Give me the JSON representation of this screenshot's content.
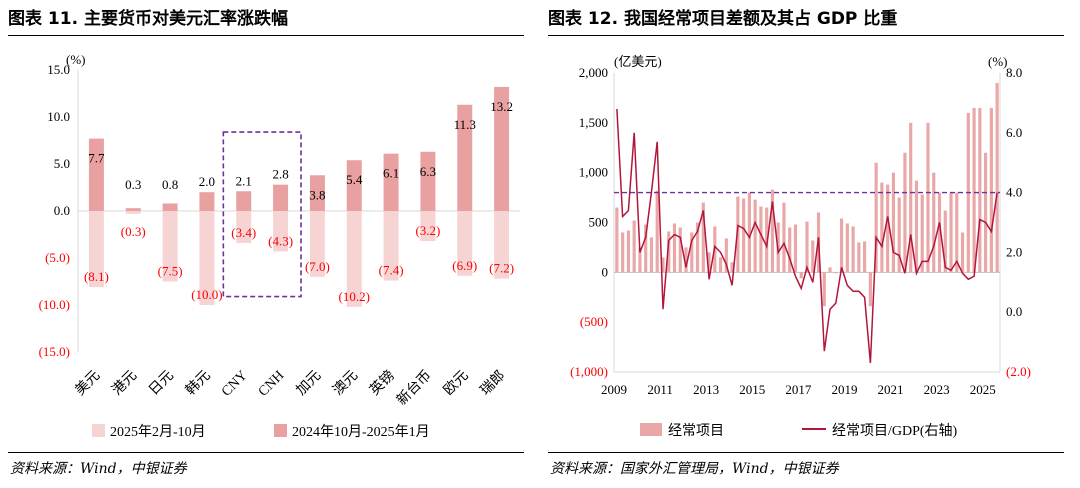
{
  "left": {
    "title": "图表 11. 主要货币对美元汇率涨跌幅",
    "source": "资料来源：Wind，中银证券",
    "unit": "(%)",
    "chart_data": {
      "type": "bar",
      "categories": [
        "美元",
        "港元",
        "日元",
        "韩元",
        "CNY",
        "CNH",
        "加元",
        "澳元",
        "英镑",
        "新台币",
        "欧元",
        "瑞郎"
      ],
      "series": [
        {
          "name": "2025年2月-10月",
          "values": [
            -8.1,
            -0.3,
            -7.5,
            -10.0,
            -3.4,
            -4.3,
            -7.0,
            -10.2,
            -7.4,
            -3.2,
            -6.9,
            -7.2
          ],
          "color": "#f7d4d4"
        },
        {
          "name": "2024年10月-2025年1月",
          "values": [
            7.7,
            0.3,
            0.8,
            2.0,
            2.1,
            2.8,
            3.8,
            5.4,
            6.1,
            6.3,
            11.3,
            13.2
          ],
          "color": "#e8a0a0"
        }
      ],
      "bar_labels": {
        "positive": [
          "7.7",
          "0.3",
          "0.8",
          "2.0",
          "2.1",
          "2.8",
          "3.8",
          "5.4",
          "6.1",
          "6.3",
          "11.3",
          "13.2"
        ],
        "negative": [
          "(8.1)",
          "(0.3)",
          "(7.5)",
          "(10.0)",
          "(3.4)",
          "(4.3)",
          "(7.0)",
          "(10.2)",
          "(7.4)",
          "(3.2)",
          "(6.9)",
          "(7.2)"
        ]
      },
      "ylim": [
        -15,
        15
      ],
      "yticks": [
        15,
        10,
        5,
        0,
        -5,
        -10,
        -15
      ],
      "ytick_labels": [
        "15.0",
        "10.0",
        "5.0",
        "0.0",
        "(5.0)",
        "(10.0)",
        "(15.0)"
      ],
      "legend_position": "bottom",
      "highlight_box_categories": [
        "CNY",
        "CNH"
      ],
      "negative_label_color": "#ff0000",
      "highlight_color": "#7030a0"
    }
  },
  "right": {
    "title": "图表 12. 我国经常项目差额及其占 GDP 比重",
    "source": "资料来源：国家外汇管理局，Wind，中银证券",
    "left_unit": "(亿美元)",
    "right_unit": "(%)",
    "chart_data": {
      "type": "bar",
      "x": [
        "2009Q1",
        "2009Q2",
        "2009Q3",
        "2009Q4",
        "2010Q1",
        "2010Q2",
        "2010Q3",
        "2010Q4",
        "2011Q1",
        "2011Q2",
        "2011Q3",
        "2011Q4",
        "2012Q1",
        "2012Q2",
        "2012Q3",
        "2012Q4",
        "2013Q1",
        "2013Q2",
        "2013Q3",
        "2013Q4",
        "2014Q1",
        "2014Q2",
        "2014Q3",
        "2014Q4",
        "2015Q1",
        "2015Q2",
        "2015Q3",
        "2015Q4",
        "2016Q1",
        "2016Q2",
        "2016Q3",
        "2016Q4",
        "2017Q1",
        "2017Q2",
        "2017Q3",
        "2017Q4",
        "2018Q1",
        "2018Q2",
        "2018Q3",
        "2018Q4",
        "2019Q1",
        "2019Q2",
        "2019Q3",
        "2019Q4",
        "2020Q1",
        "2020Q2",
        "2020Q3",
        "2020Q4",
        "2021Q1",
        "2021Q2",
        "2021Q3",
        "2021Q4",
        "2022Q1",
        "2022Q2",
        "2022Q3",
        "2022Q4",
        "2023Q1",
        "2023Q2",
        "2023Q3",
        "2023Q4",
        "2024Q1",
        "2024Q2",
        "2024Q3",
        "2024Q4",
        "2025Q1",
        "2025Q2",
        "2025Q3"
      ],
      "xtick_labels": [
        "2009",
        "2011",
        "2013",
        "2015",
        "2017",
        "2019",
        "2021",
        "2023",
        "2025"
      ],
      "series": [
        {
          "name": "经常项目",
          "axis": "left",
          "color": "#e9a7a7",
          "values": [
            650,
            400,
            420,
            520,
            250,
            480,
            350,
            820,
            150,
            410,
            490,
            450,
            250,
            400,
            500,
            700,
            200,
            460,
            150,
            340,
            100,
            760,
            740,
            800,
            730,
            660,
            650,
            830,
            500,
            700,
            450,
            480,
            -60,
            510,
            320,
            600,
            -340,
            50,
            -10,
            540,
            490,
            460,
            300,
            310,
            -340,
            1100,
            900,
            880,
            1000,
            750,
            1200,
            1500,
            920,
            780,
            1500,
            1000,
            800,
            620,
            800,
            800,
            400,
            1600,
            1650,
            1650,
            1200,
            1650,
            1900
          ]
        },
        {
          "name": "经常项目/GDP(右轴)",
          "axis": "right",
          "color": "#b3163b",
          "values": [
            6.8,
            3.2,
            3.4,
            6.0,
            2.0,
            2.5,
            4.0,
            5.7,
            0.1,
            2.4,
            2.6,
            2.5,
            1.5,
            2.4,
            2.7,
            3.4,
            1.1,
            2.2,
            2.0,
            1.6,
            0.9,
            2.9,
            2.8,
            2.5,
            3.0,
            2.6,
            2.2,
            3.7,
            2.0,
            2.3,
            1.8,
            1.2,
            0.8,
            1.5,
            1.0,
            2.5,
            -1.3,
            0.1,
            0.3,
            1.5,
            0.9,
            0.7,
            0.7,
            0.5,
            -1.7,
            2.5,
            2.2,
            3.2,
            2.0,
            1.9,
            1.3,
            2.6,
            1.3,
            1.7,
            1.7,
            2.2,
            3.0,
            1.5,
            1.4,
            1.7,
            1.3,
            1.1,
            1.2,
            3.1,
            3.0,
            2.7,
            4.0
          ]
        }
      ],
      "threshold_line": {
        "axis": "right",
        "value": 4.0,
        "color": "#7030a0",
        "style": "dashed"
      },
      "left_ylim": [
        -1000,
        2000
      ],
      "left_yticks": [
        2000,
        1500,
        1000,
        500,
        0,
        -500,
        -1000
      ],
      "left_ytick_labels": [
        "2,000",
        "1,500",
        "1,000",
        "500",
        "0",
        "(500)",
        "(1,000)"
      ],
      "right_ylim": [
        -2.0,
        8.0
      ],
      "right_yticks": [
        8.0,
        6.0,
        4.0,
        2.0,
        0.0,
        -2.0
      ],
      "right_ytick_labels": [
        "8.0",
        "6.0",
        "4.0",
        "2.0",
        "0.0",
        "(2.0)"
      ],
      "legend_position": "bottom"
    }
  }
}
